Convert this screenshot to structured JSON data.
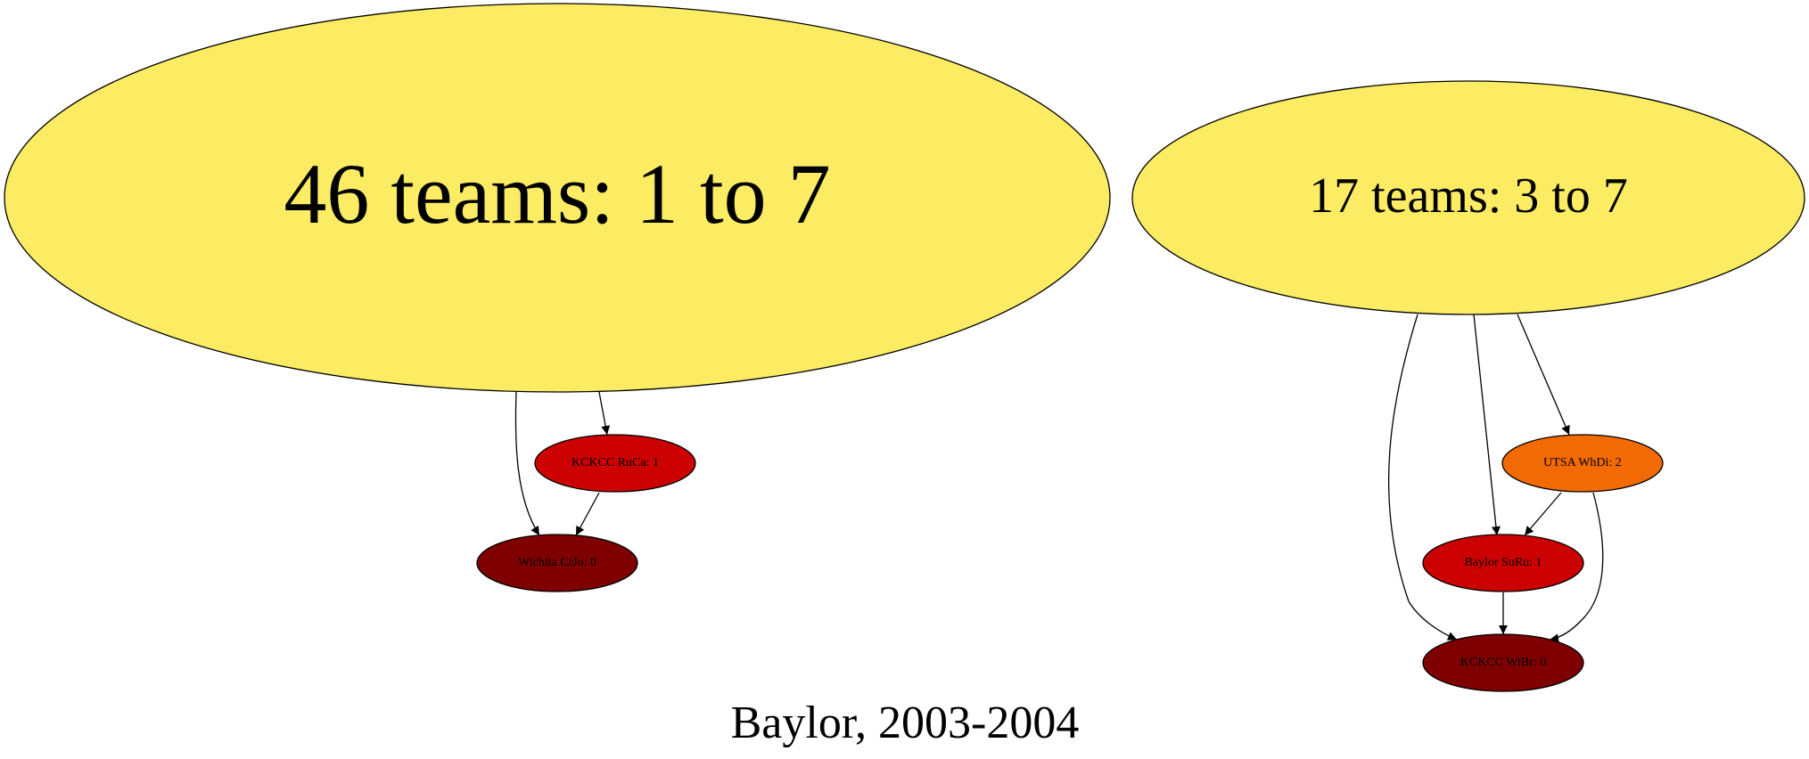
{
  "caption": "Baylor, 2003-2004",
  "colors": {
    "group": "#fcec64",
    "rank2": "#f26a04",
    "rank1": "#cc0202",
    "rank0": "#7e0000",
    "edge": "#000000"
  },
  "nodes": {
    "group_a": {
      "label": "46 teams: 1 to 7"
    },
    "group_b": {
      "label": "17 teams: 3 to 7"
    },
    "kckcc_ruca": {
      "label": "KCKCC RuCa: 1"
    },
    "wichita_crjo": {
      "label": "Wichita CrJo: 0"
    },
    "utsa_whdi": {
      "label": "UTSA WhDi: 2"
    },
    "baylor_suru": {
      "label": "Baylor SuRu: 1"
    },
    "kckcc_wibr": {
      "label": "KCKCC WiBr: 0"
    }
  },
  "edges": [
    {
      "from": "46 teams: 1 to 7",
      "to": "Wichita CrJo: 0"
    },
    {
      "from": "46 teams: 1 to 7",
      "to": "KCKCC RuCa: 1"
    },
    {
      "from": "KCKCC RuCa: 1",
      "to": "Wichita CrJo: 0"
    },
    {
      "from": "17 teams: 3 to 7",
      "to": "KCKCC WiBr: 0"
    },
    {
      "from": "17 teams: 3 to 7",
      "to": "Baylor SuRu: 1"
    },
    {
      "from": "17 teams: 3 to 7",
      "to": "UTSA WhDi: 2"
    },
    {
      "from": "UTSA WhDi: 2",
      "to": "Baylor SuRu: 1"
    },
    {
      "from": "UTSA WhDi: 2",
      "to": "KCKCC WiBr: 0"
    },
    {
      "from": "Baylor SuRu: 1",
      "to": "KCKCC WiBr: 0"
    }
  ]
}
